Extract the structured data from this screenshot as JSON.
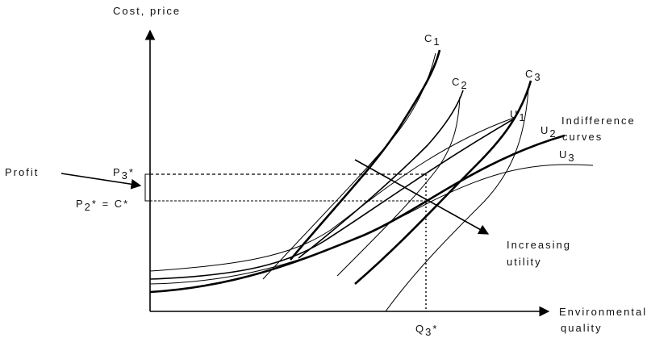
{
  "axes": {
    "y_label": "Cost, price",
    "x_label_line1": "Environmental",
    "x_label_line2": "quality"
  },
  "curves": {
    "c1": "C",
    "c1_sub": "1",
    "c2": "C",
    "c2_sub": "2",
    "c3": "C",
    "c3_sub": "3",
    "u1": "U",
    "u1_sub": "1",
    "u2": "U",
    "u2_sub": "2",
    "u3": "U",
    "u3_sub": "3"
  },
  "annotations": {
    "indifference_line1": "Indifference",
    "indifference_line2": "curves",
    "profit": "Profit",
    "p3": "P",
    "p3_sub": "3",
    "p3_star": "*",
    "p2": "P",
    "p2_sub": "2",
    "p2_rest": "* = C*",
    "q3": "Q",
    "q3_sub": "3",
    "q3_star": "*",
    "increasing_line1": "Increasing",
    "increasing_line2": "utility"
  }
}
